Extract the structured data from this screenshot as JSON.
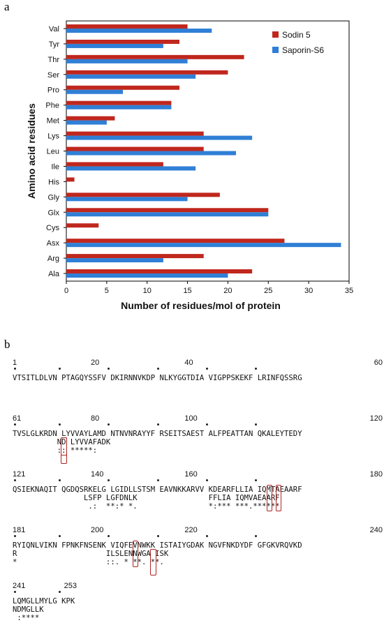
{
  "panel_a_label": "a",
  "panel_b_label": "b",
  "chart_data": {
    "type": "bar",
    "orientation": "horizontal",
    "categories": [
      "Val",
      "Tyr",
      "Thr",
      "Ser",
      "Pro",
      "Phe",
      "Met",
      "Lys",
      "Leu",
      "Ile",
      "His",
      "Gly",
      "Glx",
      "Cys",
      "Asx",
      "Arg",
      "Ala"
    ],
    "series": [
      {
        "name": "Sodin 5",
        "color": "#c0271d",
        "values": [
          15,
          14,
          22,
          20,
          14,
          13,
          6,
          17,
          17,
          12,
          1,
          19,
          25,
          4,
          27,
          17,
          23
        ]
      },
      {
        "name": "Saporin-S6",
        "color": "#2f7fd6",
        "values": [
          18,
          12,
          15,
          16,
          7,
          13,
          5,
          23,
          21,
          16,
          0,
          15,
          25,
          0,
          34,
          12,
          20
        ]
      }
    ],
    "xlabel": "Number of residues/mol of protein",
    "ylabel": "Amino acid residues",
    "xlim": [
      0,
      35
    ],
    "xticks": [
      "0",
      "5",
      "10",
      "15",
      "20",
      "25",
      "30",
      "35"
    ],
    "legend_position": "top-right",
    "grid": false
  },
  "sequence": {
    "blocks": [
      {
        "numbers": [
          "1",
          "20",
          "40",
          "60"
        ],
        "lines": [
          "VTSITLDLVN PTAGQYSSFV DKIRNNVKDP NLKYGGTDIA VIGPPSKEKF LRINFQSSRG"
        ]
      },
      {
        "numbers": [
          "61",
          "80",
          "100",
          "120"
        ],
        "lines": [
          "TVSLGLKRDN LYVVAYLAMD NTNVNRAYYF RSEITSAEST ALFPEATTAN QKALEYTEDY",
          "          ND LYVVAFADK",
          "          :: *****:"
        ]
      },
      {
        "numbers": [
          "121",
          "140",
          "160",
          "180"
        ],
        "lines": [
          "QSIEKNAQIT QGDQSRKELG LGIDLLSTSM EAVNKKARVV KDEARFLLIA IQMTAEAARF",
          "                LSFP LGFDNLK                FFLIA IQMVAEAARF",
          "                 .:  **:* *.                *:*** ***.******"
        ]
      },
      {
        "numbers": [
          "181",
          "200",
          "220",
          "240"
        ],
        "lines": [
          "RYIQNLVIKN FPNKFNSENK VIQFEVNWKK ISTAIYGDAK NGVFNKDYDF GFGKVRQVKD",
          "R                    ILSLENNWGA ISK",
          "*                    ::. * **. **."
        ]
      },
      {
        "numbers": [
          "241",
          "253"
        ],
        "lines": [
          "LQMGLLMYLG KPK",
          "NDMGLLK",
          " :****"
        ]
      }
    ]
  }
}
